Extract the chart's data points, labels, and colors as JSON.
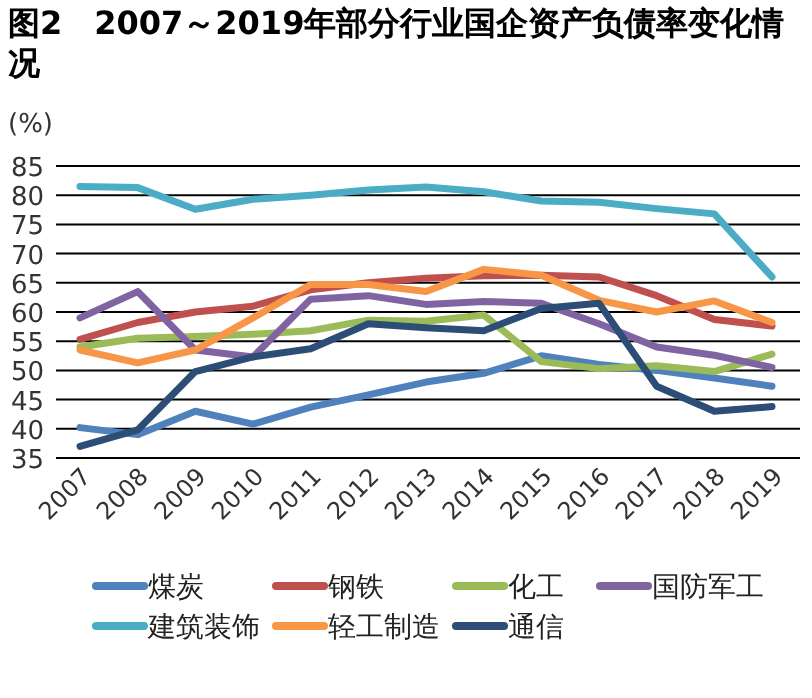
{
  "chart_data": {
    "type": "line",
    "title": "图2　2007～2019年部分行业国企资产负债率变化情况",
    "ylabel": "(%)",
    "categories": [
      "2007",
      "2008",
      "2009",
      "2010",
      "2011",
      "2012",
      "2013",
      "2014",
      "2015",
      "2016",
      "2017",
      "2018",
      "2019"
    ],
    "ylim": [
      35,
      85
    ],
    "yticks": [
      35,
      40,
      45,
      50,
      55,
      60,
      65,
      70,
      75,
      80,
      85
    ],
    "grid": "y",
    "legend": "bottom",
    "marker": "none",
    "line_style": "solid",
    "series": [
      {
        "name": "煤炭",
        "color": "#4f81bd",
        "values": [
          40.2,
          39,
          43,
          40.8,
          43.7,
          45.8,
          48,
          49.5,
          52.5,
          51,
          50,
          48.7,
          47.3
        ]
      },
      {
        "name": "钢铁",
        "color": "#c0504d",
        "values": [
          55.3,
          58.2,
          60,
          61,
          63.8,
          65,
          65.8,
          66.2,
          66.3,
          66,
          62.8,
          58.7,
          57.6
        ]
      },
      {
        "name": "化工",
        "color": "#9bbb59",
        "values": [
          54,
          55.5,
          55.8,
          56.2,
          56.8,
          58.6,
          58.4,
          59.5,
          51.5,
          50.3,
          50.8,
          49.8,
          52.8
        ]
      },
      {
        "name": "国防军工",
        "color": "#8064a2",
        "values": [
          59,
          63.5,
          53.5,
          52.3,
          62.2,
          62.8,
          61.3,
          61.8,
          61.5,
          58,
          54,
          52.6,
          50.5
        ]
      },
      {
        "name": "建筑装饰",
        "color": "#4bacc6",
        "values": [
          81.5,
          81.3,
          77.6,
          79.3,
          80,
          80.9,
          81.4,
          80.6,
          79,
          78.8,
          77.7,
          76.8,
          66
        ]
      },
      {
        "name": "轻工制造",
        "color": "#f79646",
        "values": [
          53.5,
          51.3,
          53.5,
          59,
          64.7,
          64.7,
          63.5,
          67.3,
          66.3,
          62,
          60,
          61.9,
          58.2
        ]
      },
      {
        "name": "通信",
        "color": "#2c4d75",
        "values": [
          37,
          39.8,
          49.8,
          52.3,
          53.7,
          58,
          57.3,
          56.8,
          60.6,
          61.5,
          47.3,
          43,
          43.8
        ]
      }
    ]
  }
}
